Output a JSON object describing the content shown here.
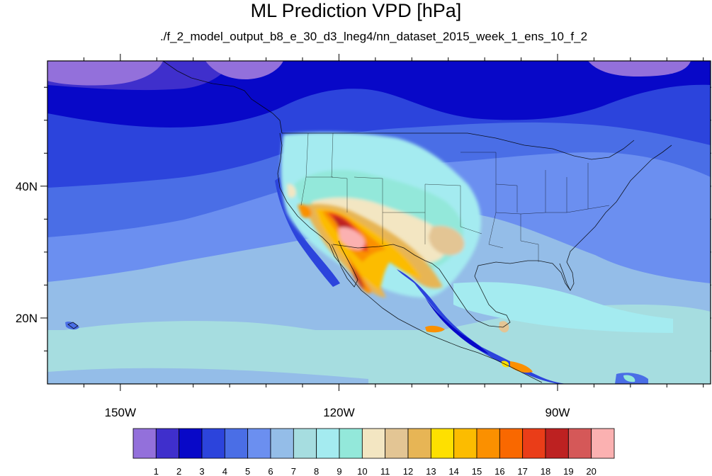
{
  "title": "ML Prediction VPD [hPa]",
  "subtitle": "./f_2_model_output_b8_e_30_d3_lneg4/nn_dataset_2015_week_1_ens_10_f_2",
  "map": {
    "lon_range": [
      -160,
      -69
    ],
    "lat_range": [
      10,
      59
    ],
    "lat_ticks": [
      {
        "value": 40,
        "label": "40N"
      },
      {
        "value": 20,
        "label": "20N"
      }
    ],
    "lon_ticks": [
      {
        "value": -150,
        "label": "150W"
      },
      {
        "value": -120,
        "label": "120W"
      },
      {
        "value": -90,
        "label": "90W"
      }
    ]
  },
  "colorbar": {
    "levels": [
      "1",
      "2",
      "3",
      "4",
      "5",
      "6",
      "7",
      "8",
      "9",
      "10",
      "11",
      "12",
      "13",
      "14",
      "15",
      "16",
      "17",
      "18",
      "19",
      "20"
    ],
    "colors": [
      "#9370db",
      "#3f2fcc",
      "#0808c8",
      "#2c44dc",
      "#4a6ee6",
      "#6b8ff0",
      "#94bde8",
      "#a6dde0",
      "#a4ebf0",
      "#93e8da",
      "#f3e6c2",
      "#e3c594",
      "#e7b555",
      "#fee000",
      "#fcbc00",
      "#fb9000",
      "#f96800",
      "#ea3d18",
      "#bd2121",
      "#d55858",
      "#fbb1b1"
    ]
  }
}
